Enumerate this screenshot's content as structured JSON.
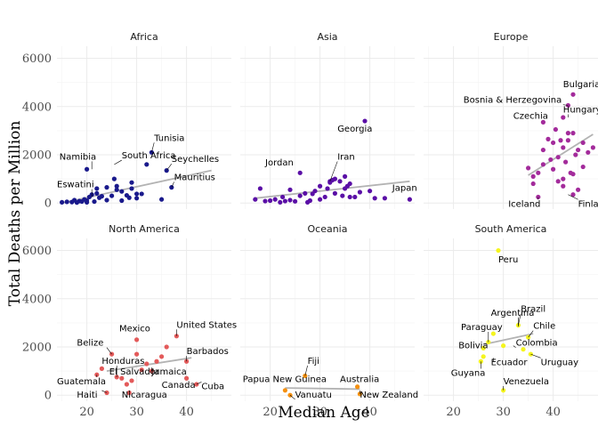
{
  "chart_data": {
    "type": "scatter",
    "xlabel": "Median Age",
    "ylabel": "Total Deaths per Million",
    "xlim": [
      14,
      49
    ],
    "ylim": [
      -250,
      6500
    ],
    "x_ticks": [
      20,
      30,
      40
    ],
    "y_ticks": [
      0,
      2000,
      4000,
      6000
    ],
    "grid": true,
    "facets": [
      {
        "name": "Africa",
        "color": "#1a1a8c",
        "trend": [
          [
            15,
            0
          ],
          [
            45,
            1350
          ]
        ],
        "points": [
          [
            15,
            30
          ],
          [
            16,
            50
          ],
          [
            17,
            40
          ],
          [
            17.5,
            120
          ],
          [
            18,
            20
          ],
          [
            18.5,
            80
          ],
          [
            19,
            60
          ],
          [
            19.5,
            150
          ],
          [
            20,
            30
          ],
          [
            20,
            100
          ],
          [
            20.5,
            250
          ],
          [
            21,
            350
          ],
          [
            21.5,
            60
          ],
          [
            22,
            400
          ],
          [
            22.5,
            220
          ],
          [
            23,
            280
          ],
          [
            24,
            120
          ],
          [
            24,
            650
          ],
          [
            25,
            300
          ],
          [
            25.5,
            1000
          ],
          [
            26,
            550
          ],
          [
            26,
            700
          ],
          [
            27,
            100
          ],
          [
            27,
            480
          ],
          [
            28,
            320
          ],
          [
            28.5,
            220
          ],
          [
            29,
            850
          ],
          [
            29,
            600
          ],
          [
            30,
            200
          ],
          [
            30,
            380
          ],
          [
            31,
            380
          ],
          [
            32,
            1600
          ],
          [
            33,
            2100
          ],
          [
            35,
            150
          ],
          [
            36,
            1350
          ],
          [
            37,
            650
          ],
          [
            20,
            1400
          ],
          [
            22,
            600
          ]
        ],
        "labels": [
          {
            "text": "Tunisia",
            "x": 33,
            "y": 2100,
            "lx": 33.5,
            "ly": 2580
          },
          {
            "text": "Namibia",
            "x": 21,
            "y": 1400,
            "lx": 14.5,
            "ly": 1800
          },
          {
            "text": "South Africa",
            "x": 25.5,
            "y": 1600,
            "lx": 27,
            "ly": 1850
          },
          {
            "text": "Seychelles",
            "x": 36,
            "y": 1350,
            "lx": 37,
            "ly": 1700
          },
          {
            "text": "Mauritius",
            "x": 37,
            "y": 650,
            "lx": 37.5,
            "ly": 950
          },
          {
            "text": "Eswatini",
            "x": 21,
            "y": 250,
            "lx": 14,
            "ly": 650
          }
        ]
      },
      {
        "name": "Asia",
        "color": "#5a0fa6",
        "trend": [
          [
            17,
            200
          ],
          [
            48,
            900
          ]
        ],
        "points": [
          [
            17,
            150
          ],
          [
            18,
            600
          ],
          [
            19,
            80
          ],
          [
            20,
            100
          ],
          [
            21,
            150
          ],
          [
            22,
            30
          ],
          [
            22.5,
            250
          ],
          [
            23,
            80
          ],
          [
            24,
            550
          ],
          [
            24,
            120
          ],
          [
            25,
            70
          ],
          [
            26,
            1250
          ],
          [
            26,
            300
          ],
          [
            27,
            400
          ],
          [
            27.5,
            30
          ],
          [
            28,
            100
          ],
          [
            28.5,
            380
          ],
          [
            29,
            500
          ],
          [
            30,
            700
          ],
          [
            30,
            150
          ],
          [
            31,
            250
          ],
          [
            31.5,
            600
          ],
          [
            32,
            900
          ],
          [
            32.5,
            950
          ],
          [
            33,
            1000
          ],
          [
            33,
            400
          ],
          [
            34,
            900
          ],
          [
            34.5,
            300
          ],
          [
            35,
            1100
          ],
          [
            35,
            600
          ],
          [
            35.5,
            700
          ],
          [
            36,
            250
          ],
          [
            37,
            250
          ],
          [
            38,
            450
          ],
          [
            39,
            3400
          ],
          [
            40,
            500
          ],
          [
            41,
            200
          ],
          [
            43,
            200
          ],
          [
            48,
            150
          ],
          [
            32,
            850
          ],
          [
            36,
            800
          ]
        ],
        "labels": [
          {
            "text": "Georgia",
            "x": 39,
            "y": 3400,
            "lx": 33.5,
            "ly": 2950
          },
          {
            "text": "Iran",
            "x": 32,
            "y": 900,
            "lx": 33.5,
            "ly": 1800
          },
          {
            "text": "Jordan",
            "x": 24,
            "y": 1250,
            "lx": 19,
            "ly": 1550
          },
          {
            "text": "Japan",
            "x": 48,
            "y": 300,
            "lx": 44.5,
            "ly": 500
          }
        ]
      },
      {
        "name": "Europe",
        "color": "#a32b9b",
        "trend": [
          [
            35,
            1150
          ],
          [
            48,
            2850
          ]
        ],
        "points": [
          [
            44,
            4500
          ],
          [
            43,
            4050
          ],
          [
            42,
            3550
          ],
          [
            38,
            3350
          ],
          [
            35,
            1450
          ],
          [
            36,
            1100
          ],
          [
            36,
            800
          ],
          [
            37,
            250
          ],
          [
            37,
            1250
          ],
          [
            38,
            1600
          ],
          [
            38,
            2200
          ],
          [
            39,
            2650
          ],
          [
            39.5,
            1800
          ],
          [
            40,
            1400
          ],
          [
            40,
            2500
          ],
          [
            40.5,
            3050
          ],
          [
            41,
            1900
          ],
          [
            41,
            900
          ],
          [
            41.5,
            2600
          ],
          [
            42,
            2300
          ],
          [
            42,
            1000
          ],
          [
            42.5,
            1700
          ],
          [
            43,
            2900
          ],
          [
            43,
            2600
          ],
          [
            43.5,
            1250
          ],
          [
            44,
            1200
          ],
          [
            44,
            2900
          ],
          [
            44.5,
            2000
          ],
          [
            45,
            2200
          ],
          [
            45,
            550
          ],
          [
            46,
            1500
          ],
          [
            46,
            2500
          ],
          [
            47,
            2100
          ],
          [
            48,
            2300
          ],
          [
            42,
            700
          ],
          [
            44,
            350
          ]
        ],
        "labels": [
          {
            "text": "Bulgaria",
            "x": 44,
            "y": 4500,
            "lx": 42,
            "ly": 4800
          },
          {
            "text": "Bosnia & Herzegovina",
            "x": 43,
            "y": 4050,
            "lx": 22,
            "ly": 4150
          },
          {
            "text": "Hungary",
            "x": 43,
            "y": 3550,
            "lx": 42,
            "ly": 3750
          },
          {
            "text": "Czechia",
            "x": 38,
            "y": 3350,
            "lx": 32,
            "ly": 3500
          },
          {
            "text": "Iceland",
            "x": 37,
            "y": 250,
            "lx": 31,
            "ly": -150
          },
          {
            "text": "Finland",
            "x": 43,
            "y": 350,
            "lx": 45,
            "ly": -150
          }
        ]
      },
      {
        "name": "North America",
        "color": "#e35a5a",
        "trend": [
          [
            24,
            1000
          ],
          [
            41,
            1550
          ]
        ],
        "points": [
          [
            22,
            850
          ],
          [
            23,
            1100
          ],
          [
            24,
            100
          ],
          [
            25,
            1700
          ],
          [
            26,
            750
          ],
          [
            27,
            700
          ],
          [
            28,
            450
          ],
          [
            28.5,
            100
          ],
          [
            29,
            600
          ],
          [
            30,
            1700
          ],
          [
            30,
            2300
          ],
          [
            31,
            1050
          ],
          [
            32,
            1300
          ],
          [
            33,
            1000
          ],
          [
            34,
            1400
          ],
          [
            35,
            1600
          ],
          [
            36,
            2000
          ],
          [
            38,
            2450
          ],
          [
            40,
            1400
          ],
          [
            40,
            700
          ],
          [
            42,
            450
          ]
        ],
        "labels": [
          {
            "text": "United States",
            "x": 38,
            "y": 2450,
            "lx": 38,
            "ly": 2800
          },
          {
            "text": "Mexico",
            "x": 30,
            "y": 2300,
            "lx": 26.5,
            "ly": 2650
          },
          {
            "text": "Belize",
            "x": 25,
            "y": 1700,
            "lx": 18,
            "ly": 2050
          },
          {
            "text": "Honduras",
            "x": 26,
            "y": 750,
            "lx": 23,
            "ly": 1300
          },
          {
            "text": "Barbados",
            "x": 40,
            "y": 1400,
            "lx": 40,
            "ly": 1700
          },
          {
            "text": "El Salvador",
            "x": 28,
            "y": 700,
            "lx": 24.5,
            "ly": 850
          },
          {
            "text": "Jamaica",
            "x": 33,
            "y": 1000,
            "lx": 33,
            "ly": 850
          },
          {
            "text": "Guatemala",
            "x": 22,
            "y": 850,
            "lx": 14,
            "ly": 450
          },
          {
            "text": "Canada",
            "x": 40,
            "y": 700,
            "lx": 35,
            "ly": 300
          },
          {
            "text": "Cuba",
            "x": 42,
            "y": 450,
            "lx": 43,
            "ly": 250
          },
          {
            "text": "Haiti",
            "x": 24,
            "y": 100,
            "lx": 18,
            "ly": -100
          },
          {
            "text": "Nicaragua",
            "x": 28.5,
            "y": 100,
            "lx": 27,
            "ly": -100
          }
        ]
      },
      {
        "name": "Oceania",
        "color": "#f5900f",
        "trend": [
          [
            23,
            300
          ],
          [
            38,
            250
          ]
        ],
        "points": [
          [
            23,
            200
          ],
          [
            24,
            0
          ],
          [
            27,
            800
          ],
          [
            37.5,
            350
          ],
          [
            38,
            50
          ]
        ],
        "labels": [
          {
            "text": "Fiji",
            "x": 27,
            "y": 800,
            "lx": 27.5,
            "ly": 1300
          },
          {
            "text": "Papua New Guinea",
            "x": 23,
            "y": 200,
            "lx": 14.5,
            "ly": 550
          },
          {
            "text": "Australia",
            "x": 37.5,
            "y": 350,
            "lx": 34,
            "ly": 550
          },
          {
            "text": "Vanuatu",
            "x": 24,
            "y": 0,
            "lx": 25,
            "ly": -100
          },
          {
            "text": "New Zealand",
            "x": 38,
            "y": 50,
            "lx": 38,
            "ly": -100
          }
        ]
      },
      {
        "name": "South America",
        "color": "#f5f51f",
        "trend": [
          [
            26,
            2100
          ],
          [
            36,
            2550
          ]
        ],
        "points": [
          [
            29,
            6000
          ],
          [
            28,
            2550
          ],
          [
            27,
            2200
          ],
          [
            26,
            1600
          ],
          [
            26,
            1950
          ],
          [
            25.5,
            1400
          ],
          [
            33,
            2900
          ],
          [
            34,
            1900
          ],
          [
            35,
            2400
          ],
          [
            35.5,
            1700
          ],
          [
            30,
            2050
          ],
          [
            30,
            200
          ]
        ],
        "labels": [
          {
            "text": "Peru",
            "x": 29,
            "y": 6000,
            "lx": 29,
            "ly": 5500
          },
          {
            "text": "Brazil",
            "x": 33,
            "y": 2900,
            "lx": 33.5,
            "ly": 3450
          },
          {
            "text": "Argentina",
            "x": 33,
            "y": 2850,
            "lx": 27.5,
            "ly": 3300
          },
          {
            "text": "Chile",
            "x": 35,
            "y": 2400,
            "lx": 36,
            "ly": 2750
          },
          {
            "text": "Paraguay",
            "x": 27,
            "y": 2200,
            "lx": 21.5,
            "ly": 2700
          },
          {
            "text": "Colombia",
            "x": 32,
            "y": 2050,
            "lx": 32.5,
            "ly": 2050
          },
          {
            "text": "Bolivia",
            "x": 26,
            "y": 1950,
            "lx": 21,
            "ly": 1950
          },
          {
            "text": "Ecuador",
            "x": 28,
            "y": 1400,
            "lx": 27.5,
            "ly": 1250
          },
          {
            "text": "Uruguay",
            "x": 35.5,
            "y": 1700,
            "lx": 37.5,
            "ly": 1250
          },
          {
            "text": "Guyana",
            "x": 25.5,
            "y": 1400,
            "lx": 19.5,
            "ly": 800
          },
          {
            "text": "Venezuela",
            "x": 30,
            "y": 200,
            "lx": 30,
            "ly": 450
          }
        ]
      }
    ]
  }
}
